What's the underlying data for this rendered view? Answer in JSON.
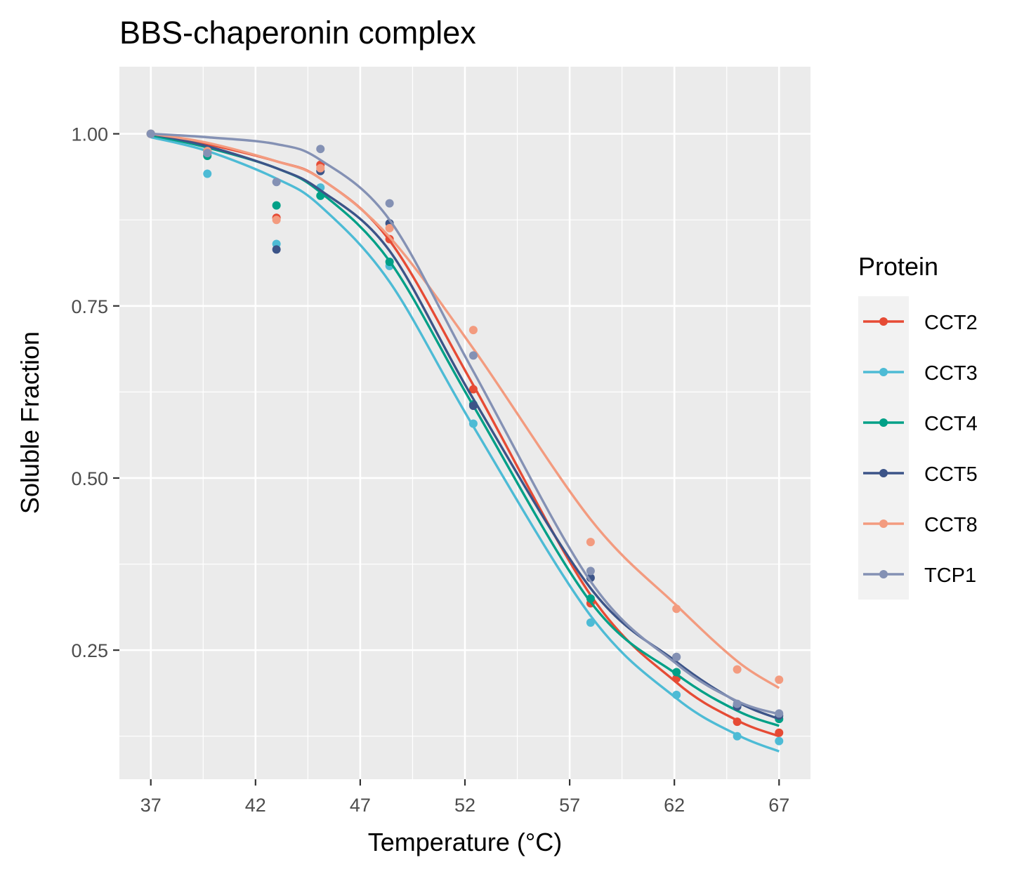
{
  "chart_data": {
    "type": "line",
    "title": "BBS-chaperonin complex",
    "xlabel": "Temperature (°C)",
    "ylabel": "Soluble Fraction",
    "xlim": [
      35.5,
      68.5
    ],
    "ylim": [
      0.0625,
      1.0975
    ],
    "x_ticks": [
      37,
      42,
      47,
      52,
      57,
      62,
      67
    ],
    "x_tick_labels": [
      "37",
      "42",
      "47",
      "52",
      "57",
      "62",
      "67"
    ],
    "y_ticks": [
      0.25,
      0.5,
      0.75,
      1.0
    ],
    "y_tick_labels": [
      "0.25",
      "0.50",
      "0.75",
      "1.00"
    ],
    "grid": true,
    "legend_title": "Protein",
    "legend_position": "right",
    "x": [
      37,
      39.7,
      43,
      45.1,
      48.4,
      52.4,
      58,
      62.1,
      65,
      67
    ],
    "series": [
      {
        "name": "CCT2",
        "color": "#E64B35",
        "values": [
          1.0,
          0.97,
          0.878,
          0.955,
          0.847,
          0.629,
          0.318,
          0.209,
          0.146,
          0.13
        ],
        "fit": [
          1.0,
          0.985,
          0.96,
          0.935,
          0.845,
          0.635,
          0.33,
          0.203,
          0.148,
          0.125
        ]
      },
      {
        "name": "CCT3",
        "color": "#4DBBD5",
        "values": [
          1.0,
          0.942,
          0.84,
          0.922,
          0.808,
          0.579,
          0.29,
          0.185,
          0.125,
          0.118
        ],
        "fit": [
          0.995,
          0.975,
          0.935,
          0.895,
          0.785,
          0.575,
          0.3,
          0.18,
          0.127,
          0.103
        ]
      },
      {
        "name": "CCT4",
        "color": "#00A087",
        "values": [
          1.0,
          0.968,
          0.896,
          0.91,
          0.814,
          0.607,
          0.325,
          0.218,
          0.17,
          0.15
        ],
        "fit": [
          0.998,
          0.98,
          0.95,
          0.915,
          0.815,
          0.605,
          0.32,
          0.215,
          0.162,
          0.14
        ]
      },
      {
        "name": "CCT5",
        "color": "#3C5488",
        "values": [
          1.0,
          0.975,
          0.832,
          0.946,
          0.87,
          0.605,
          0.355,
          0.24,
          0.168,
          0.155
        ],
        "fit": [
          1.0,
          0.982,
          0.95,
          0.918,
          0.83,
          0.615,
          0.34,
          0.233,
          0.175,
          0.15
        ]
      },
      {
        "name": "CCT8",
        "color": "#F39B7F",
        "values": [
          1.0,
          0.975,
          0.875,
          0.95,
          0.863,
          0.715,
          0.407,
          0.31,
          0.222,
          0.207
        ],
        "fit": [
          1.0,
          0.987,
          0.96,
          0.935,
          0.85,
          0.688,
          0.44,
          0.315,
          0.234,
          0.195
        ]
      },
      {
        "name": "TCP1",
        "color": "#8491B4",
        "values": [
          1.0,
          0.972,
          0.93,
          0.978,
          0.899,
          0.678,
          0.365,
          0.24,
          0.172,
          0.158
        ],
        "fit": [
          1.0,
          0.995,
          0.985,
          0.962,
          0.875,
          0.655,
          0.35,
          0.23,
          0.176,
          0.157
        ]
      }
    ]
  }
}
